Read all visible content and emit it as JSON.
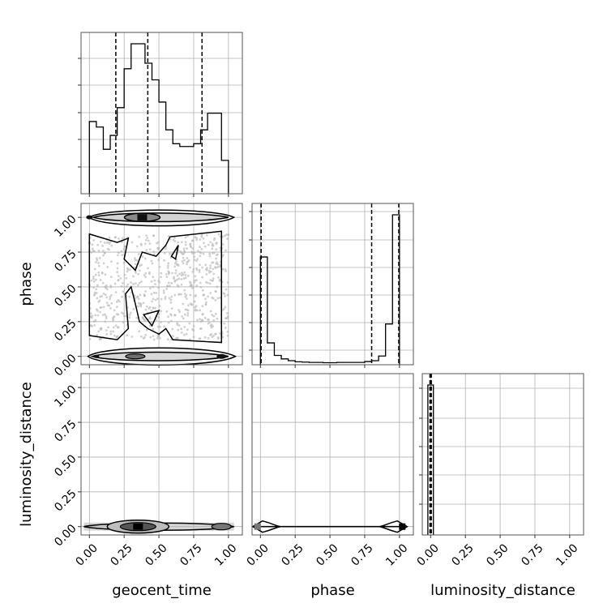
{
  "chart_data": {
    "type": "corner",
    "parameters": [
      "geocent_time",
      "phase",
      "luminosity_distance"
    ],
    "axis_labels": {
      "x": [
        "geocent_time",
        "phase",
        "luminosity_distance"
      ],
      "y": [
        "phase",
        "luminosity_distance"
      ]
    },
    "tick_labels": [
      "0.00",
      "0.25",
      "0.50",
      "0.75",
      "1.00"
    ],
    "tick_values": [
      0,
      0.25,
      0.5,
      0.75,
      1.0
    ],
    "ranges": {
      "geocent_time": [
        -0.06,
        1.1
      ],
      "phase": [
        -0.06,
        1.1
      ],
      "luminosity_distance": [
        -0.06,
        1.1
      ]
    },
    "grid": true,
    "histograms": {
      "geocent_time": {
        "bin_edges": [
          0.0,
          0.05,
          0.1,
          0.15,
          0.2,
          0.25,
          0.3,
          0.35,
          0.4,
          0.45,
          0.5,
          0.55,
          0.6,
          0.65,
          0.7,
          0.75,
          0.8,
          0.85,
          0.9,
          0.95,
          1.0
        ],
        "counts": [
          26,
          24,
          16,
          21,
          31,
          45,
          54,
          54,
          47,
          41,
          33,
          23,
          18,
          17,
          17,
          18,
          23,
          29,
          29,
          12
        ],
        "quantiles": [
          0.19,
          0.42,
          0.81
        ]
      },
      "phase": {
        "bin_edges": [
          0.0,
          0.05,
          0.1,
          0.15,
          0.2,
          0.25,
          0.3,
          0.35,
          0.4,
          0.45,
          0.5,
          0.55,
          0.6,
          0.65,
          0.7,
          0.75,
          0.8,
          0.85,
          0.9,
          0.95,
          1.0
        ],
        "counts": [
          370,
          75,
          32,
          20,
          14,
          10,
          9,
          8,
          8,
          7,
          7,
          8,
          8,
          8,
          8,
          11,
          14,
          30,
          140,
          515
        ],
        "quantiles": [
          0.005,
          0.8,
          0.995
        ]
      },
      "luminosity_distance": {
        "bin_edges": [
          -0.02,
          0.0,
          0.02
        ],
        "counts": [
          1,
          1
        ],
        "quantiles": [
          -0.005,
          0.0,
          0.005
        ]
      }
    },
    "density_peaks": {
      "geocent_time_vs_phase": [
        [
          0.38,
          1.0
        ],
        [
          0.35,
          0.0
        ],
        [
          0.95,
          0.0
        ],
        [
          0.0,
          1.0
        ]
      ],
      "geocent_time_vs_luminosity_distance": [
        [
          0.35,
          0.0
        ],
        [
          0.95,
          0.0
        ]
      ],
      "phase_vs_luminosity_distance": [
        [
          0.0,
          0.0
        ],
        [
          1.0,
          0.0
        ]
      ]
    }
  }
}
